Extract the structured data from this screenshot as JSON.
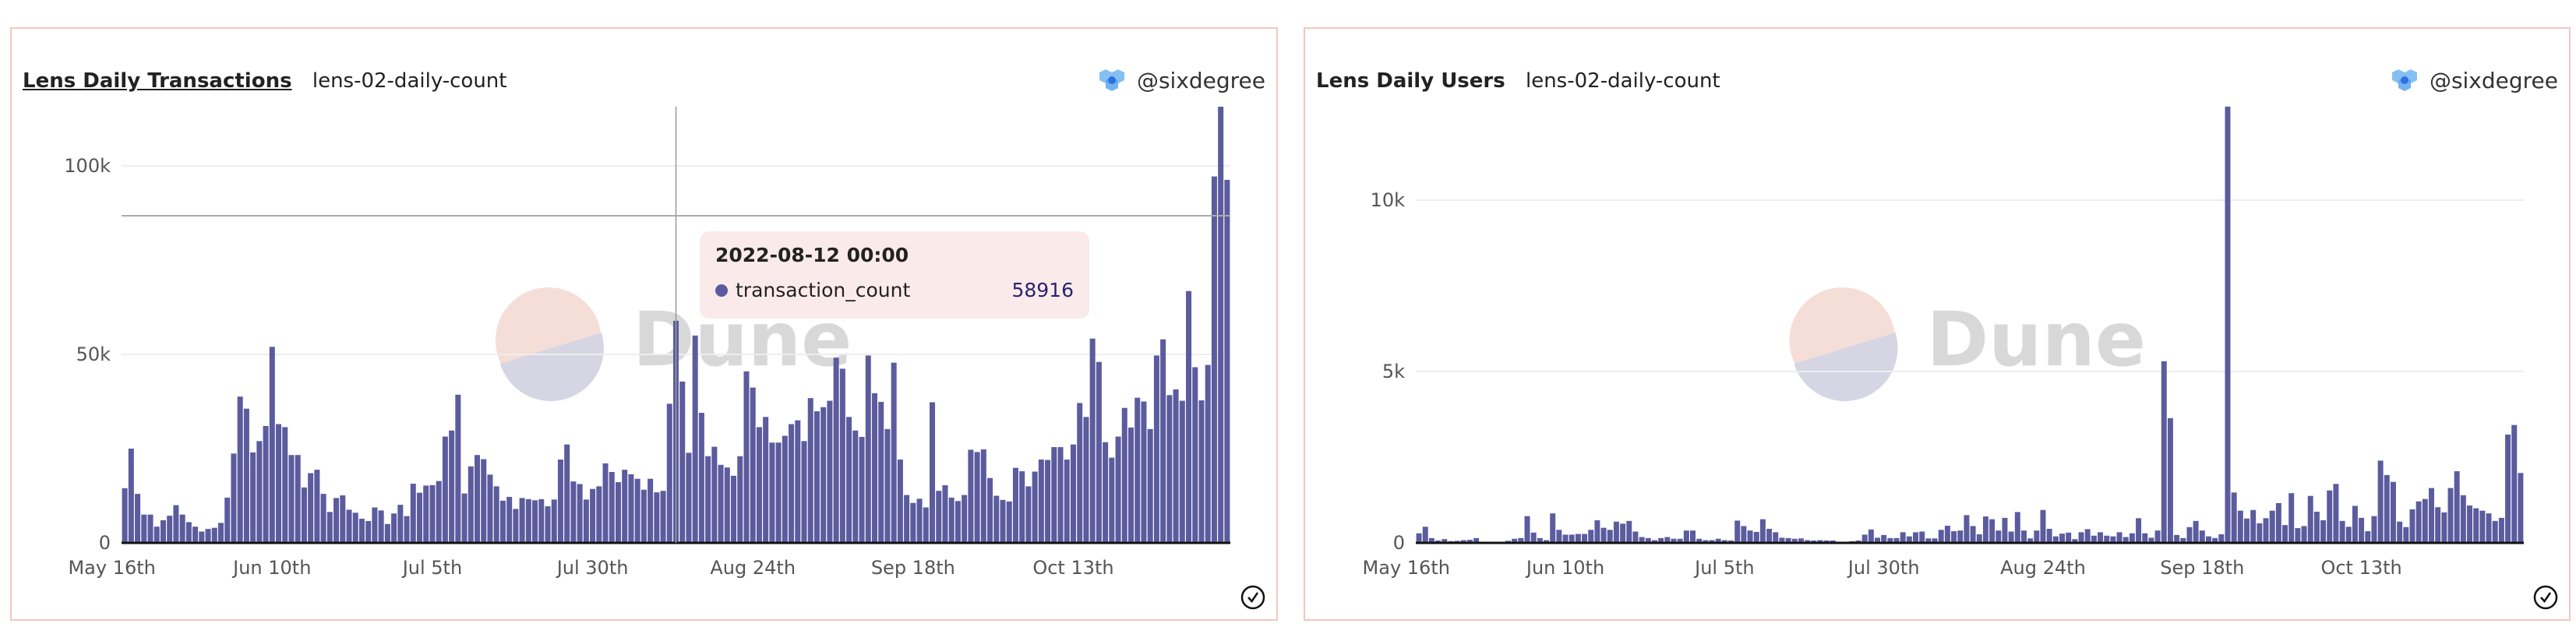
{
  "colors": {
    "bar": "#5b5b9e",
    "border": "#f2c6c2",
    "tooltip_bg": "#fbeaea",
    "watermark_top": "#f6ded8",
    "watermark_bottom": "#d6d5e4"
  },
  "watermark": "Dune",
  "panels": [
    {
      "title": "Lens Daily Transactions",
      "subtitle": "lens-02-daily-count",
      "author": "@sixdegree",
      "tooltip": {
        "date": "2022-08-12 00:00",
        "series": "transaction_count",
        "value": "58916"
      }
    },
    {
      "title": "Lens Daily Users",
      "subtitle": "lens-02-daily-count",
      "author": "@sixdegree"
    }
  ],
  "chart_data": [
    {
      "type": "bar",
      "start_date": "2022-05-18",
      "interval": "day",
      "series_name": "transaction_count",
      "ylim": [
        0,
        120000
      ],
      "yticks": [
        0,
        50000,
        100000
      ],
      "ytick_labels": [
        "0",
        "50k",
        "100k"
      ],
      "xtick_dates": [
        "2022-05-16",
        "2022-06-10",
        "2022-07-05",
        "2022-07-30",
        "2022-08-24",
        "2022-09-18",
        "2022-10-13"
      ],
      "xtick_labels": [
        "May 16th",
        "Jun 10th",
        "Jul 5th",
        "Jul 30th",
        "Aug 24th",
        "Sep 18th",
        "Oct 13th"
      ],
      "grid": true,
      "highlight_date": "2022-08-12",
      "values": [
        14500,
        25000,
        13000,
        7500,
        7500,
        4300,
        6000,
        7200,
        10000,
        7500,
        5500,
        4300,
        3000,
        3700,
        4000,
        5300,
        12000,
        23700,
        38800,
        35600,
        24000,
        27000,
        31000,
        52000,
        31500,
        30700,
        23300,
        23300,
        14700,
        18500,
        19400,
        13000,
        8200,
        11900,
        12600,
        8800,
        8000,
        6400,
        5800,
        9400,
        8600,
        5000,
        7800,
        10100,
        7100,
        15700,
        13300,
        15200,
        15300,
        16400,
        28200,
        29800,
        39300,
        13100,
        20300,
        23300,
        22200,
        18100,
        15000,
        11200,
        12200,
        9000,
        11900,
        11600,
        11300,
        11600,
        9700,
        11500,
        22100,
        26100,
        16300,
        15600,
        11500,
        14300,
        15000,
        21100,
        18800,
        16100,
        19400,
        18200,
        17000,
        14100,
        17000,
        13400,
        13800,
        36900,
        58916,
        42800,
        23900,
        55000,
        34500,
        23000,
        25500,
        20700,
        20000,
        17800,
        23000,
        45500,
        41200,
        30700,
        33400,
        26600,
        26600,
        28400,
        31500,
        32500,
        27000,
        38400,
        34900,
        36000,
        37700,
        49100,
        46200,
        33400,
        29800,
        28100,
        49700,
        39700,
        37400,
        30200,
        47800,
        22100,
        12700,
        10600,
        11700,
        9400,
        37300,
        13800,
        15300,
        12000,
        11100,
        12700,
        24700,
        24100,
        24800,
        17200,
        12500,
        11400,
        11000,
        19900,
        19000,
        15000,
        18900,
        22100,
        22000,
        25400,
        25400,
        22100,
        26100,
        37100,
        33400,
        54200,
        48000,
        26700,
        22600,
        28200,
        35800,
        30600,
        38500,
        37500,
        30200,
        49700,
        54000,
        39200,
        40700,
        37700,
        66800,
        46600,
        37800,
        47200,
        97200,
        115700,
        96300
      ]
    },
    {
      "type": "bar",
      "start_date": "2022-05-18",
      "interval": "day",
      "ylim": [
        0,
        13000
      ],
      "yticks": [
        0,
        5000,
        10000
      ],
      "ytick_labels": [
        "0",
        "5k",
        "10k"
      ],
      "xtick_dates": [
        "2022-05-16",
        "2022-06-10",
        "2022-07-05",
        "2022-07-30",
        "2022-08-24",
        "2022-09-18",
        "2022-10-13"
      ],
      "xtick_labels": [
        "May 16th",
        "Jun 10th",
        "Jul 5th",
        "Jul 30th",
        "Aug 24th",
        "Sep 18th",
        "Oct 13th"
      ],
      "grid": true,
      "values": [
        280,
        470,
        140,
        70,
        110,
        50,
        60,
        80,
        90,
        140,
        20,
        20,
        30,
        20,
        60,
        120,
        140,
        780,
        300,
        140,
        80,
        860,
        380,
        240,
        240,
        260,
        260,
        380,
        660,
        440,
        380,
        620,
        560,
        640,
        330,
        170,
        140,
        80,
        140,
        170,
        120,
        120,
        360,
        360,
        120,
        80,
        80,
        120,
        80,
        70,
        650,
        490,
        360,
        320,
        690,
        410,
        310,
        150,
        140,
        120,
        130,
        80,
        70,
        80,
        70,
        70,
        20,
        20,
        50,
        70,
        240,
        390,
        150,
        230,
        140,
        140,
        310,
        190,
        310,
        330,
        130,
        130,
        380,
        500,
        340,
        360,
        810,
        490,
        250,
        770,
        690,
        360,
        730,
        330,
        900,
        360,
        130,
        360,
        960,
        410,
        190,
        270,
        300,
        110,
        310,
        400,
        210,
        310,
        210,
        190,
        310,
        170,
        280,
        720,
        280,
        150,
        360,
        5300,
        3640,
        230,
        140,
        460,
        640,
        360,
        190,
        140,
        250,
        12730,
        1470,
        940,
        710,
        960,
        570,
        720,
        940,
        1160,
        520,
        1450,
        430,
        490,
        1370,
        910,
        660,
        1530,
        1720,
        640,
        470,
        1080,
        730,
        340,
        780,
        2400,
        1980,
        1780,
        620,
        460,
        980,
        1210,
        1280,
        1600,
        1040,
        890,
        1600,
        2090,
        1390,
        1090,
        1010,
        940,
        860,
        640,
        730,
        3160,
        3440,
        2040
      ]
    }
  ]
}
